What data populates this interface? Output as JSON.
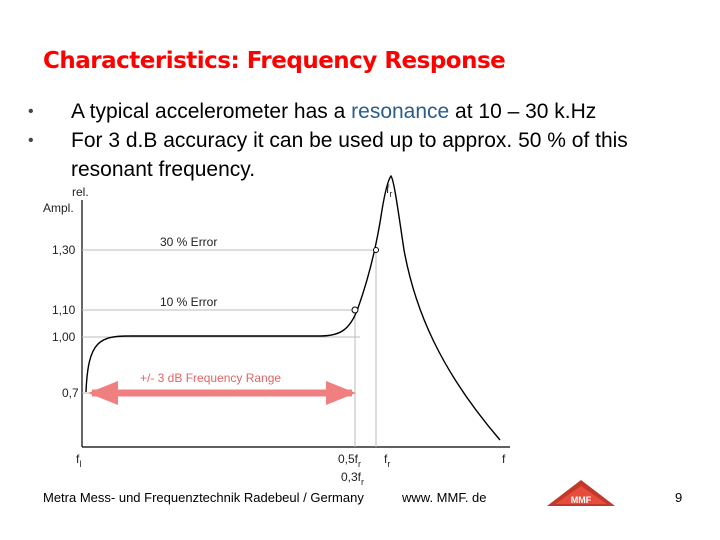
{
  "slide": {
    "title": "Characteristics: Frequency Response",
    "bullets": [
      {
        "dot": "•",
        "pre": "A typical accelerometer has a ",
        "highlight": "resonance",
        "post": " at 10 – 30 k.Hz"
      },
      {
        "dot": "•",
        "pre": "For 3 d.B accuracy it can be used up to approx. 50 % of this resonant frequency.",
        "highlight": "",
        "post": ""
      }
    ],
    "footer": {
      "company": "Metra Mess- und Frequenztechnik Radebeul / Germany",
      "url": "www. MMF. de",
      "page": "9",
      "logo_text": "MMF"
    }
  },
  "diagram": {
    "y_axis_label_line1": "rel.",
    "y_axis_label_line2": "Ampl.",
    "y_ticks": [
      "1,30",
      "1,10",
      "1,00",
      "0,7"
    ],
    "error_labels": [
      "30 % Error",
      "10 % Error"
    ],
    "range_label": "+/- 3 dB Frequency Range",
    "x_labels": {
      "fl_main": "f",
      "fl_sub": "l",
      "half_main": "0,5f",
      "half_sub": "r",
      "fr_main": "f",
      "fr_sub": "r",
      "f_end": "f",
      "low_main": "0,3f",
      "low_sub": "r",
      "peak_main": "f",
      "peak_sub": "r"
    },
    "colors": {
      "curve": "#000000",
      "grid": "#bbbbbb",
      "arrow": "#f08080",
      "axis_text": "#222222"
    }
  }
}
